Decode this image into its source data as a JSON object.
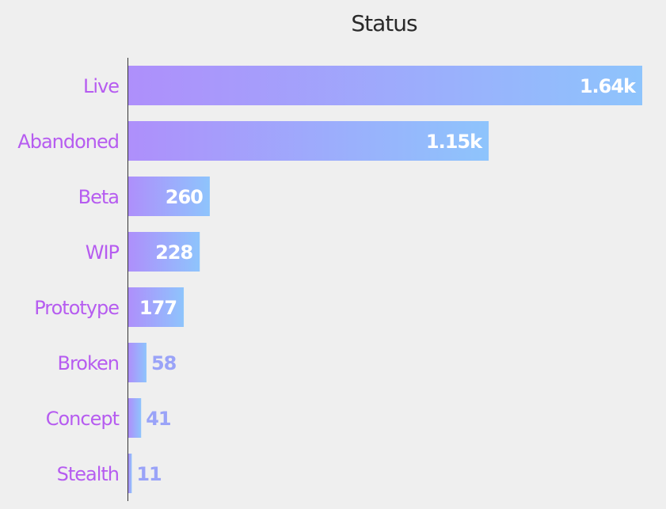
{
  "chart_data": {
    "type": "hbar",
    "title": "Status",
    "categories": [
      "Live",
      "Abandoned",
      "Beta",
      "WIP",
      "Prototype",
      "Broken",
      "Concept",
      "Stealth"
    ],
    "values": [
      1640,
      1150,
      260,
      228,
      177,
      58,
      41,
      11
    ],
    "value_labels": [
      "1.64k",
      "1.15k",
      "260",
      "228",
      "177",
      "58",
      "41",
      "11"
    ],
    "color": [
      "#ae8ffb",
      "#8ec4fc"
    ]
  }
}
